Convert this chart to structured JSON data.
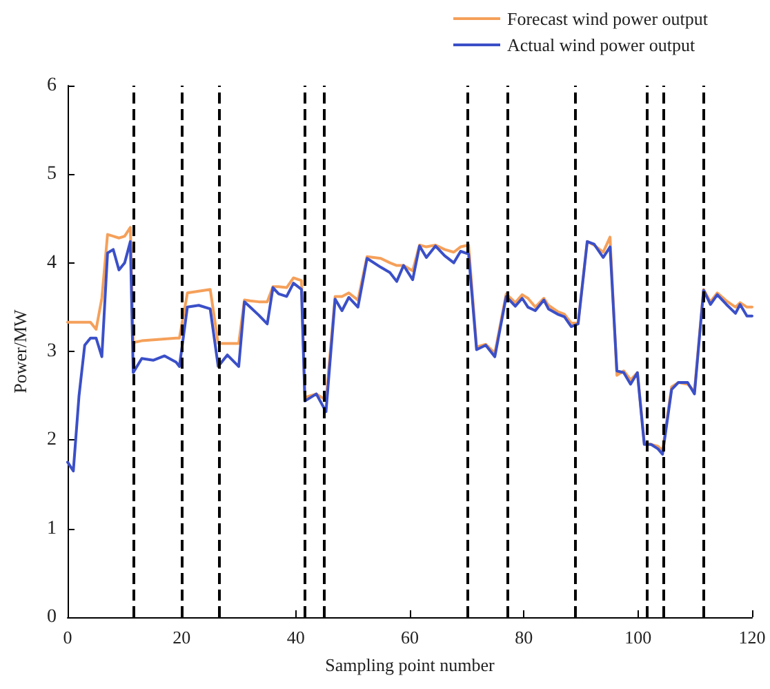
{
  "chart_data": {
    "type": "line",
    "xlabel": "Sampling point number",
    "ylabel": "Power/MW",
    "x": [
      0,
      1,
      2,
      3,
      4,
      5,
      6,
      7,
      8,
      9,
      10,
      11,
      11.5,
      13,
      15,
      17,
      19,
      19.6,
      21,
      23,
      25,
      26.4,
      28,
      30,
      31,
      32,
      33.5,
      35,
      36,
      37,
      38.4,
      39.6,
      41,
      41.6,
      43.6,
      45.3,
      46.9,
      48.1,
      49.3,
      50.9,
      52.5,
      54.9,
      56.5,
      57.7,
      58.9,
      60.5,
      61.7,
      62.9,
      64.5,
      66.1,
      67.7,
      68.9,
      70.3,
      71.7,
      73.3,
      74.9,
      76.9,
      78.5,
      79.7,
      80.7,
      82,
      83.5,
      84.3,
      85.9,
      87.1,
      88.3,
      89.5,
      91.1,
      92.3,
      93.9,
      95.1,
      96.3,
      97.5,
      98.7,
      99.9,
      101.1,
      102.3,
      103.5,
      104.3,
      105.9,
      107.1,
      108.7,
      109.9,
      111.5,
      112.7,
      113.9,
      115.5,
      117.1,
      117.9,
      119.1,
      120
    ],
    "series": [
      {
        "name": "Forecast wind power output",
        "color": "#f5a05a",
        "values": [
          3.33,
          3.33,
          3.33,
          3.33,
          3.33,
          3.25,
          3.6,
          4.32,
          4.3,
          4.28,
          4.3,
          4.4,
          3.1,
          3.12,
          3.13,
          3.14,
          3.15,
          3.15,
          3.66,
          3.68,
          3.7,
          3.09,
          3.09,
          3.09,
          3.58,
          3.57,
          3.56,
          3.56,
          3.73,
          3.73,
          3.72,
          3.83,
          3.8,
          2.48,
          2.52,
          2.45,
          3.62,
          3.62,
          3.66,
          3.58,
          4.07,
          4.05,
          4.0,
          3.97,
          3.97,
          3.91,
          4.2,
          4.18,
          4.2,
          4.15,
          4.12,
          4.18,
          4.2,
          3.05,
          3.08,
          2.98,
          3.65,
          3.55,
          3.64,
          3.6,
          3.5,
          3.6,
          3.52,
          3.45,
          3.42,
          3.32,
          3.32,
          4.24,
          4.2,
          4.12,
          4.29,
          2.73,
          2.78,
          2.68,
          2.76,
          1.97,
          1.95,
          1.93,
          1.88,
          2.6,
          2.65,
          2.63,
          2.55,
          3.7,
          3.56,
          3.66,
          3.57,
          3.5,
          3.55,
          3.5,
          3.5
        ]
      },
      {
        "name": "Actual wind power output",
        "color": "#3a4fc8",
        "values": [
          1.75,
          1.65,
          2.5,
          3.07,
          3.15,
          3.15,
          2.94,
          4.11,
          4.15,
          3.92,
          4.0,
          4.24,
          2.76,
          2.92,
          2.9,
          2.95,
          2.88,
          2.83,
          3.5,
          3.52,
          3.48,
          2.83,
          2.96,
          2.83,
          3.56,
          3.5,
          3.41,
          3.31,
          3.72,
          3.65,
          3.62,
          3.77,
          3.7,
          2.44,
          2.52,
          2.32,
          3.59,
          3.46,
          3.61,
          3.5,
          4.05,
          3.95,
          3.89,
          3.79,
          3.97,
          3.81,
          4.19,
          4.06,
          4.19,
          4.08,
          4.0,
          4.13,
          4.1,
          3.02,
          3.07,
          2.94,
          3.62,
          3.51,
          3.6,
          3.5,
          3.46,
          3.58,
          3.48,
          3.42,
          3.39,
          3.28,
          3.31,
          4.24,
          4.21,
          4.06,
          4.18,
          2.78,
          2.76,
          2.63,
          2.76,
          1.95,
          1.95,
          1.9,
          1.84,
          2.57,
          2.65,
          2.65,
          2.52,
          3.69,
          3.53,
          3.64,
          3.53,
          3.43,
          3.53,
          3.4,
          3.4
        ]
      }
    ],
    "xlim": [
      0,
      120
    ],
    "xticks": [
      0,
      20,
      40,
      60,
      80,
      100,
      120
    ],
    "ylim": [
      0,
      6
    ],
    "yticks": [
      0,
      1,
      2,
      3,
      4,
      5,
      6
    ],
    "grid": false,
    "legend": "top right",
    "marker": "none",
    "line_style": "solid",
    "ref_lines": [
      {
        "axis": "x",
        "value": 11.5,
        "color": "#000000",
        "line_style": "dashed"
      },
      {
        "axis": "x",
        "value": 20,
        "color": "#000000",
        "line_style": "dashed"
      },
      {
        "axis": "x",
        "value": 26.5,
        "color": "#000000",
        "line_style": "dashed"
      },
      {
        "axis": "x",
        "value": 41.5,
        "color": "#000000",
        "line_style": "dashed"
      },
      {
        "axis": "x",
        "value": 45,
        "color": "#000000",
        "line_style": "dashed"
      },
      {
        "axis": "x",
        "value": 70,
        "color": "#000000",
        "line_style": "dashed"
      },
      {
        "axis": "x",
        "value": 77,
        "color": "#000000",
        "line_style": "dashed"
      },
      {
        "axis": "x",
        "value": 89,
        "color": "#000000",
        "line_style": "dashed"
      },
      {
        "axis": "x",
        "value": 101.5,
        "color": "#000000",
        "line_style": "dashed"
      },
      {
        "axis": "x",
        "value": 104.5,
        "color": "#000000",
        "line_style": "dashed"
      },
      {
        "axis": "x",
        "value": 111.5,
        "color": "#000000",
        "line_style": "dashed"
      }
    ]
  }
}
